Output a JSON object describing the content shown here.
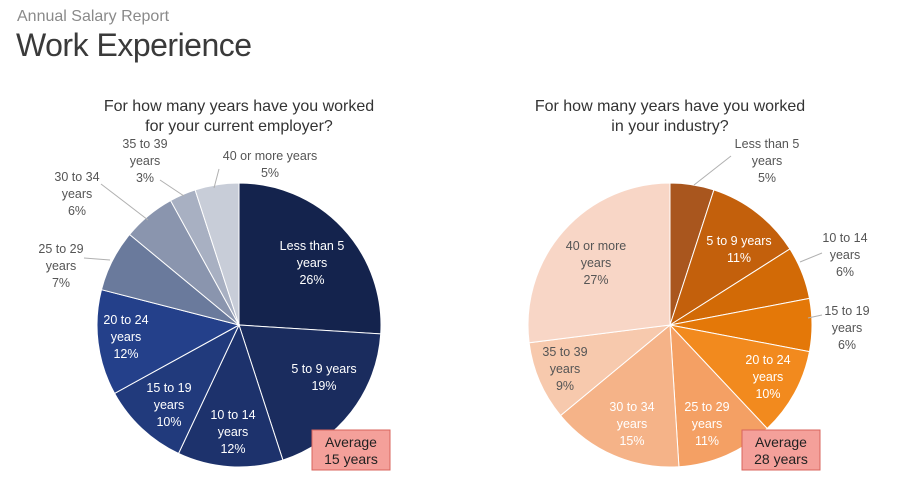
{
  "header": {
    "subtitle": "Annual Salary Report",
    "title": "Work Experience"
  },
  "chart_data": [
    {
      "type": "pie",
      "title": "For how many years have you worked for your current employer?",
      "title_lines": [
        "For how many years have you worked",
        "for your current employer?"
      ],
      "categories": [
        "Less than 5 years",
        "5 to 9 years",
        "10 to 14 years",
        "15 to 19 years",
        "20 to 24 years",
        "25 to 29 years",
        "30 to 34 years",
        "35 to 39 years",
        "40 or more years"
      ],
      "values": [
        26,
        19,
        12,
        10,
        12,
        7,
        6,
        3,
        5
      ],
      "value_labels": [
        "26%",
        "19%",
        "12%",
        "10%",
        "12%",
        "7%",
        "6%",
        "3%",
        "5%"
      ],
      "colors": [
        "#14234d",
        "#1a2c5e",
        "#1d326c",
        "#213a7c",
        "#24408a",
        "#6a7a9c",
        "#8a95ae",
        "#a8b0c2",
        "#c8cdd8"
      ],
      "label_colors": [
        "#ffffff",
        "#ffffff",
        "#ffffff",
        "#ffffff",
        "#ffffff",
        "#555555",
        "#555555",
        "#555555",
        "#555555"
      ],
      "average_label": "Average",
      "average_value": "15 years"
    },
    {
      "type": "pie",
      "title": "For how many years have you worked in your industry?",
      "title_lines": [
        "For how many years have you worked",
        "in your industry?"
      ],
      "categories": [
        "Less than 5 years",
        "5 to 9 years",
        "10 to 14 years",
        "15 to 19 years",
        "20 to 24 years",
        "25 to 29 years",
        "30 to 34 years",
        "35 to 39 years",
        "40 or more years"
      ],
      "values": [
        5,
        11,
        6,
        6,
        10,
        11,
        15,
        9,
        27
      ],
      "value_labels": [
        "5%",
        "11%",
        "6%",
        "6%",
        "10%",
        "11%",
        "15%",
        "9%",
        "27%"
      ],
      "colors": [
        "#a9561e",
        "#c3600c",
        "#d26a06",
        "#e47808",
        "#f28a1e",
        "#f4a064",
        "#f5b388",
        "#f7c9ad",
        "#f8d6c6"
      ],
      "label_colors": [
        "#555555",
        "#ffffff",
        "#555555",
        "#555555",
        "#ffffff",
        "#ffffff",
        "#ffffff",
        "#555555",
        "#555555"
      ],
      "average_label": "Average",
      "average_value": "28 years"
    }
  ]
}
